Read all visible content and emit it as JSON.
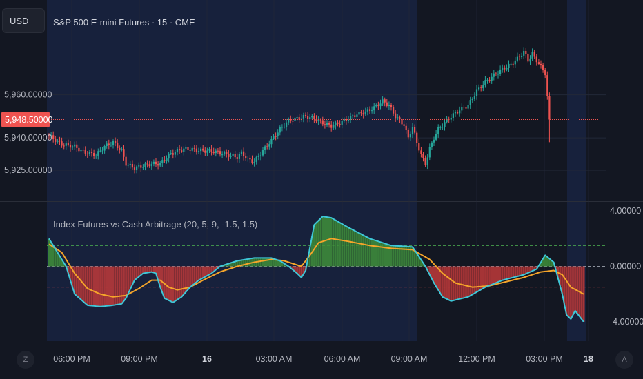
{
  "header": {
    "currency_button": "USD",
    "symbol_title": "S&P 500 E-mini Futures · 15 · CME"
  },
  "indicator": {
    "title": "Index Futures vs Cash Arbitrage (20, 5, 9, -1.5, 1.5)"
  },
  "controls": {
    "left_button": "Z",
    "right_button": "A"
  },
  "colors": {
    "background": "#131722",
    "session_shade": "#17213c",
    "grid": "#232838",
    "up": "#26a69a",
    "down": "#ef5350",
    "signal_line": "#3ec8d8",
    "ma_line": "#f5a52a",
    "current_price_tag": "#ef5350"
  },
  "chart_data": [
    {
      "type": "candlestick",
      "title": "S&P 500 E-mini Futures · 15 · CME",
      "price_axis": {
        "ticks": [
          {
            "value": 5960,
            "label": "5,960.00000"
          },
          {
            "value": 5940,
            "label": "5,940.00000"
          },
          {
            "value": 5925,
            "label": "5,925.00000"
          }
        ],
        "ylim": [
          5920.2,
          5982.9
        ]
      },
      "current_price": {
        "value": 5948.5,
        "label": "5,948.50000"
      },
      "time_axis": {
        "labels": [
          "06:00 PM",
          "09:00 PM",
          "16",
          "03:00 AM",
          "06:00 AM",
          "09:00 AM",
          "12:00 PM",
          "03:00 PM",
          "18"
        ]
      },
      "close_path": [
        [
          0,
          5941
        ],
        [
          6,
          5937
        ],
        [
          12,
          5936
        ],
        [
          16,
          5933.5
        ],
        [
          22,
          5932
        ],
        [
          26,
          5936
        ],
        [
          30,
          5938
        ],
        [
          34,
          5934
        ],
        [
          36,
          5928
        ],
        [
          40,
          5926
        ],
        [
          44,
          5927
        ],
        [
          48,
          5928
        ],
        [
          52,
          5928
        ],
        [
          56,
          5932
        ],
        [
          60,
          5934
        ],
        [
          64,
          5935
        ],
        [
          68,
          5934.5
        ],
        [
          72,
          5934
        ],
        [
          76,
          5934
        ],
        [
          80,
          5933
        ],
        [
          84,
          5932
        ],
        [
          88,
          5931
        ],
        [
          90,
          5933
        ],
        [
          93,
          5930
        ],
        [
          96,
          5929
        ],
        [
          100,
          5934
        ],
        [
          104,
          5939
        ],
        [
          108,
          5944
        ],
        [
          112,
          5948
        ],
        [
          116,
          5949
        ],
        [
          120,
          5950
        ],
        [
          124,
          5949
        ],
        [
          128,
          5947
        ],
        [
          132,
          5945.5
        ],
        [
          136,
          5947
        ],
        [
          140,
          5949
        ],
        [
          144,
          5951
        ],
        [
          148,
          5952
        ],
        [
          152,
          5954
        ],
        [
          156,
          5957
        ],
        [
          159,
          5955
        ],
        [
          162,
          5950
        ],
        [
          166,
          5946
        ],
        [
          168,
          5940
        ],
        [
          170,
          5945
        ],
        [
          172,
          5938
        ],
        [
          174,
          5932
        ],
        [
          176,
          5928
        ],
        [
          178,
          5935
        ],
        [
          180,
          5940
        ],
        [
          182,
          5944
        ],
        [
          184,
          5946
        ],
        [
          188,
          5950
        ],
        [
          192,
          5953
        ],
        [
          196,
          5955
        ],
        [
          200,
          5962
        ],
        [
          204,
          5966
        ],
        [
          208,
          5969
        ],
        [
          212,
          5972
        ],
        [
          216,
          5974
        ],
        [
          220,
          5978
        ],
        [
          222,
          5980
        ],
        [
          224,
          5976
        ],
        [
          226,
          5979
        ],
        [
          228,
          5976
        ],
        [
          230,
          5973
        ],
        [
          232,
          5970
        ],
        [
          234,
          5948.5
        ]
      ]
    },
    {
      "type": "line",
      "title": "Index Futures vs Cash Arbitrage (20, 5, 9, -1.5, 1.5)",
      "y_axis": {
        "ticks": [
          {
            "value": 4,
            "label": "4.00000"
          },
          {
            "value": 0,
            "label": "0.00000"
          },
          {
            "value": -4,
            "label": "-4.00000"
          }
        ],
        "ylim": [
          -4.25,
          4.45
        ]
      },
      "thresholds": [
        1.5,
        0,
        -1.5
      ],
      "series": [
        {
          "role": "histogram / main",
          "points": [
            [
              0,
              2
            ],
            [
              4,
              1
            ],
            [
              8,
              0
            ],
            [
              12,
              -2
            ],
            [
              18,
              -2.8
            ],
            [
              24,
              -2.9
            ],
            [
              30,
              -2.8
            ],
            [
              34,
              -2.7
            ],
            [
              36,
              -2.3
            ],
            [
              40,
              -1
            ],
            [
              44,
              -0.5
            ],
            [
              48,
              -0.4
            ],
            [
              50,
              -0.5
            ],
            [
              52,
              -1.5
            ],
            [
              54,
              -2.3
            ],
            [
              58,
              -2.6
            ],
            [
              62,
              -2.2
            ],
            [
              66,
              -1.5
            ],
            [
              70,
              -1
            ],
            [
              76,
              -0.5
            ],
            [
              80,
              0
            ],
            [
              88,
              0.4
            ],
            [
              96,
              0.6
            ],
            [
              104,
              0.6
            ],
            [
              108,
              0.4
            ],
            [
              112,
              0
            ],
            [
              116,
              -0.5
            ],
            [
              118,
              -0.8
            ],
            [
              120,
              -0.3
            ],
            [
              124,
              3
            ],
            [
              128,
              3.6
            ],
            [
              132,
              3.5
            ],
            [
              140,
              2.8
            ],
            [
              150,
              2
            ],
            [
              160,
              1.5
            ],
            [
              170,
              1.4
            ],
            [
              176,
              0
            ],
            [
              180,
              -1.2
            ],
            [
              184,
              -2.2
            ],
            [
              188,
              -2.5
            ],
            [
              196,
              -2.2
            ],
            [
              204,
              -1.5
            ],
            [
              212,
              -1
            ],
            [
              222,
              -0.6
            ],
            [
              228,
              -0.2
            ],
            [
              232,
              0.8
            ],
            [
              236,
              0.3
            ],
            [
              240,
              -2
            ],
            [
              242,
              -3.5
            ],
            [
              244,
              -3.8
            ],
            [
              246,
              -3.2
            ],
            [
              250,
              -4
            ]
          ]
        },
        {
          "role": "moving average",
          "points": [
            [
              0,
              1.6
            ],
            [
              6,
              1
            ],
            [
              12,
              -0.5
            ],
            [
              18,
              -1.6
            ],
            [
              24,
              -2
            ],
            [
              30,
              -2.2
            ],
            [
              36,
              -2.1
            ],
            [
              42,
              -1.6
            ],
            [
              48,
              -1
            ],
            [
              52,
              -1
            ],
            [
              56,
              -1.5
            ],
            [
              60,
              -1.7
            ],
            [
              66,
              -1.5
            ],
            [
              72,
              -1
            ],
            [
              80,
              -0.4
            ],
            [
              88,
              0
            ],
            [
              96,
              0.3
            ],
            [
              104,
              0.5
            ],
            [
              110,
              0.4
            ],
            [
              114,
              0.2
            ],
            [
              118,
              0
            ],
            [
              122,
              0.8
            ],
            [
              126,
              1.7
            ],
            [
              132,
              2
            ],
            [
              140,
              1.8
            ],
            [
              150,
              1.5
            ],
            [
              160,
              1.3
            ],
            [
              170,
              1.2
            ],
            [
              178,
              0.5
            ],
            [
              184,
              -0.5
            ],
            [
              190,
              -1.2
            ],
            [
              198,
              -1.5
            ],
            [
              206,
              -1.4
            ],
            [
              214,
              -1.1
            ],
            [
              222,
              -0.8
            ],
            [
              230,
              -0.4
            ],
            [
              236,
              -0.3
            ],
            [
              240,
              -0.6
            ],
            [
              244,
              -1.5
            ],
            [
              250,
              -2
            ]
          ]
        }
      ]
    }
  ]
}
